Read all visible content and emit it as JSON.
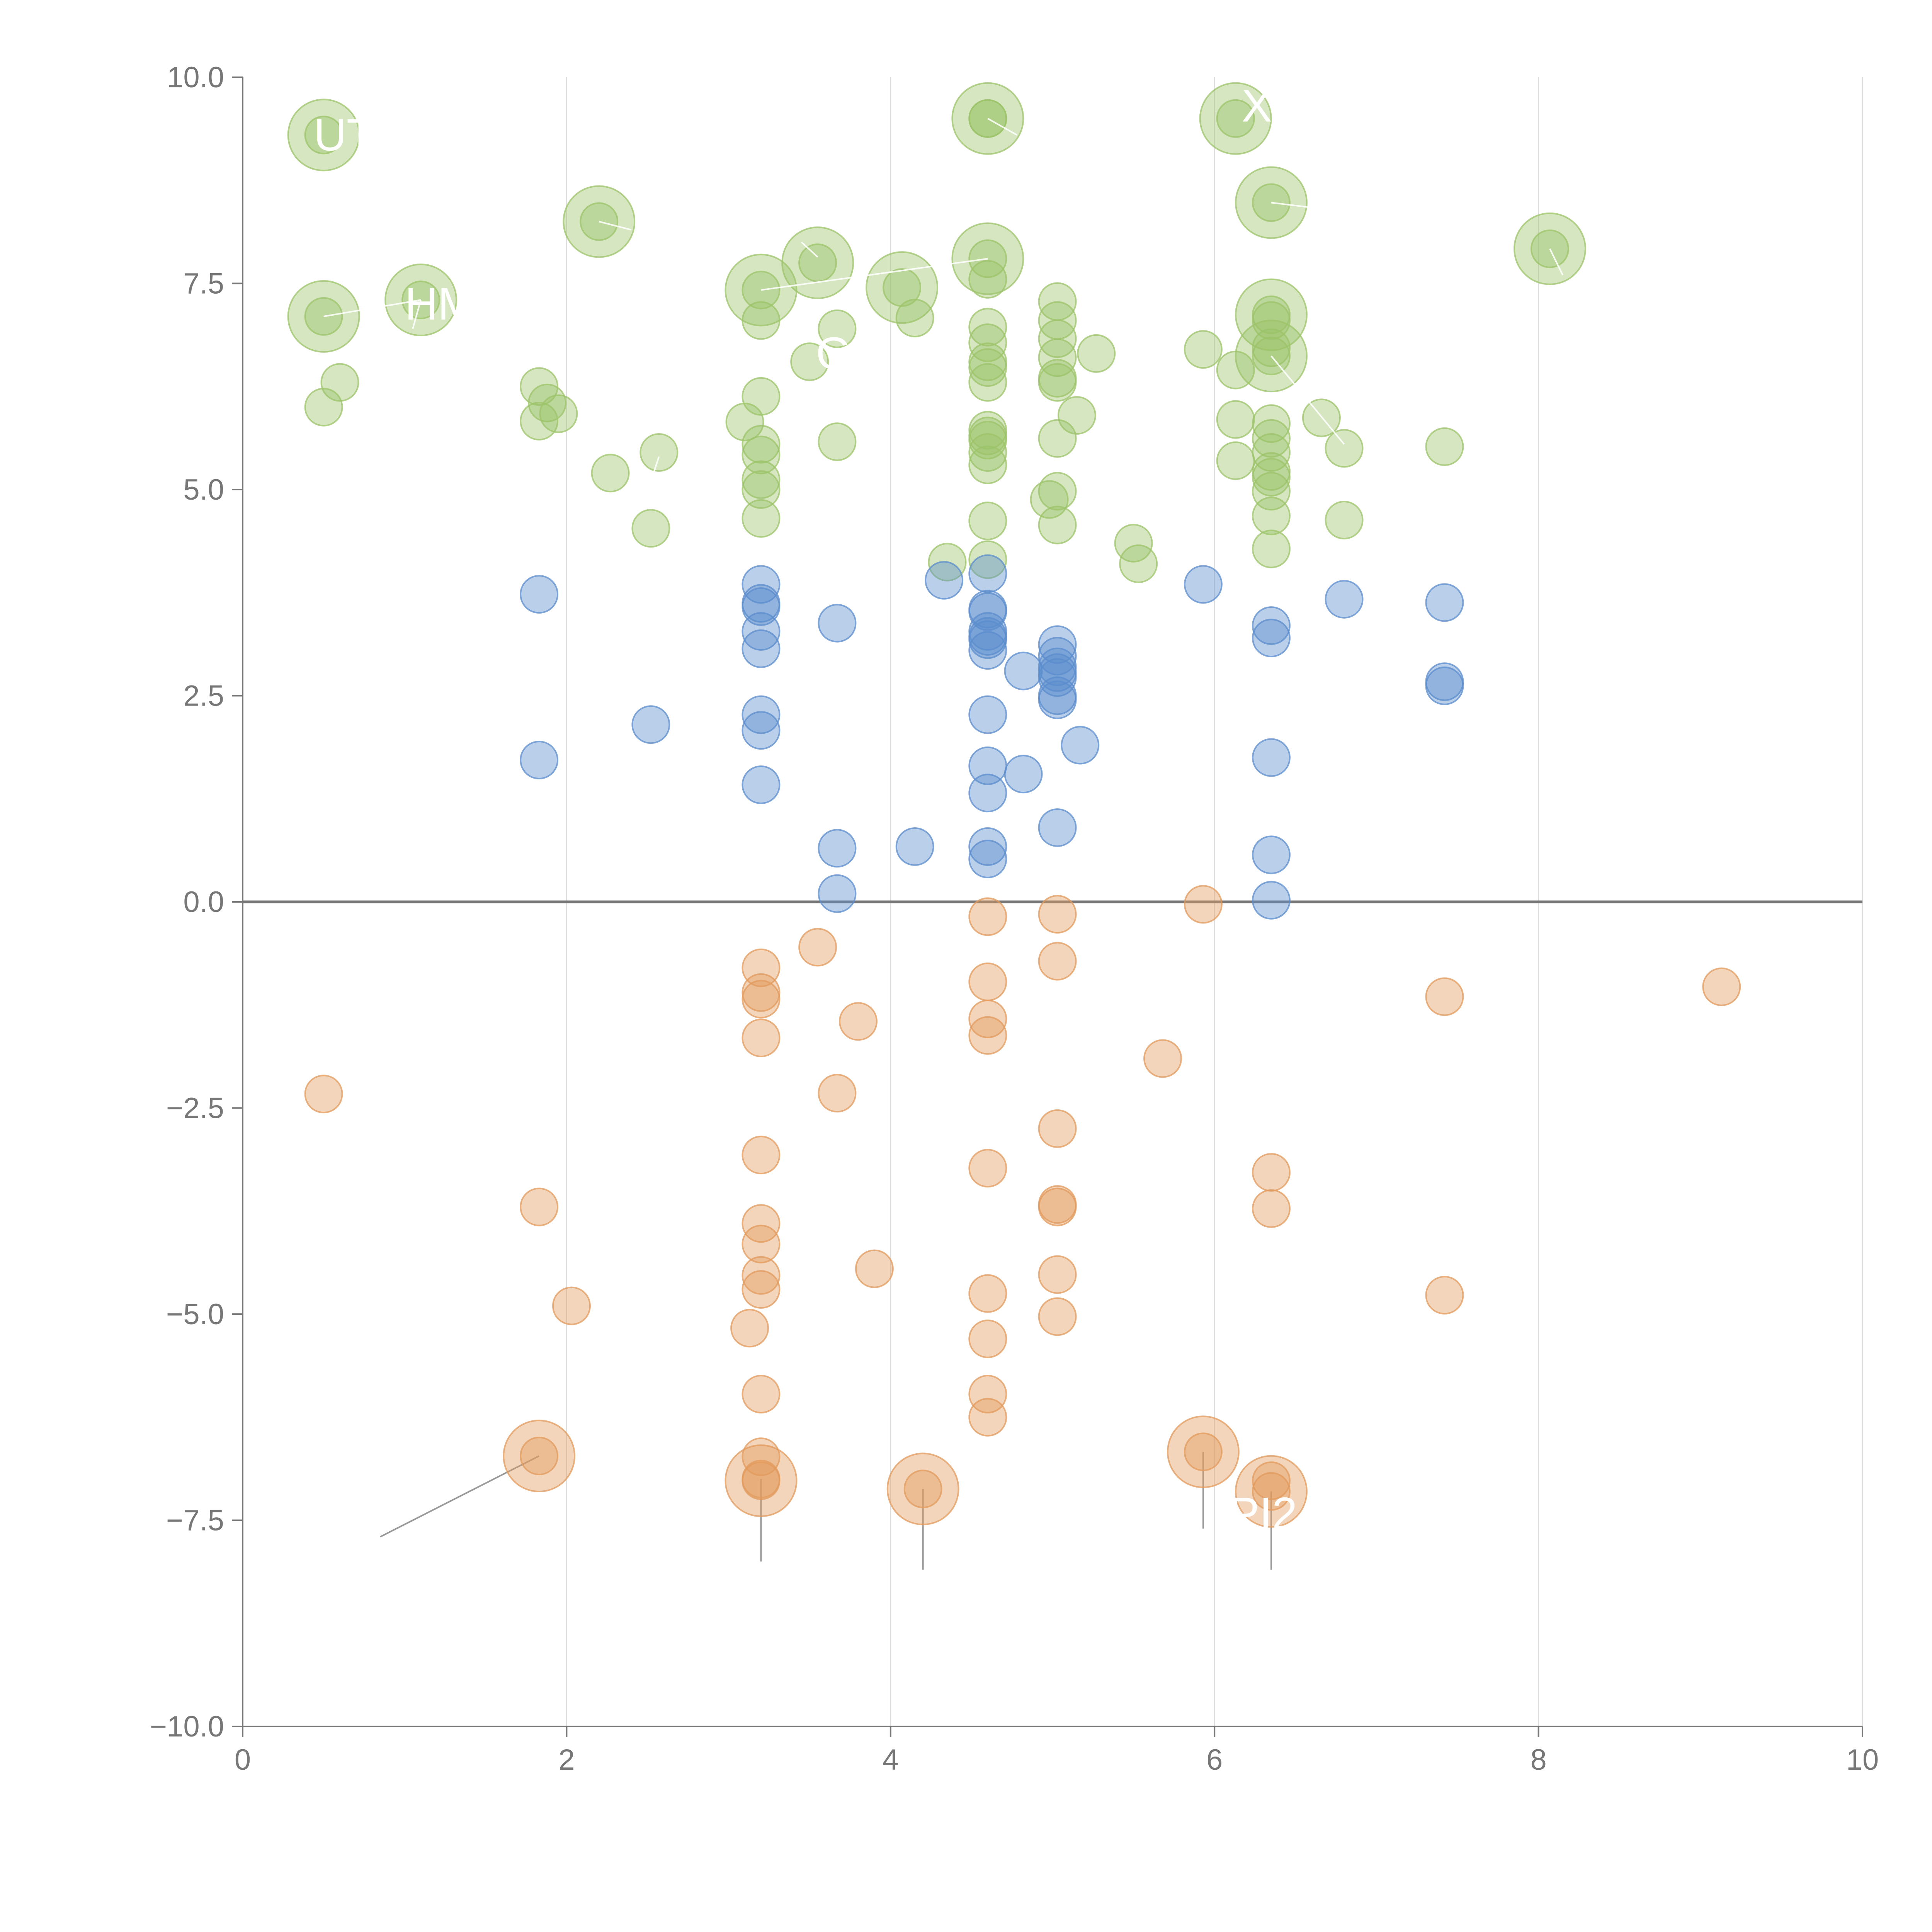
{
  "chart_data": {
    "type": "scatter",
    "title": "",
    "xlabel": "",
    "ylabel": "",
    "xlim": [
      0,
      10
    ],
    "ylim": [
      -10,
      10
    ],
    "x_ticks": [
      "0",
      "2",
      "4",
      "6",
      "8",
      "10"
    ],
    "y_ticks": [
      "−10.0",
      "−7.5",
      "−5.0",
      "−2.5",
      "0.0",
      "2.5",
      "5.0",
      "7.5",
      "10.0"
    ],
    "x_tick_values": [
      0,
      2,
      4,
      6,
      8,
      10
    ],
    "y_tick_values": [
      -10,
      -7.5,
      -5,
      -2.5,
      0,
      2.5,
      5,
      7.5,
      10
    ],
    "grid": "vertical",
    "zero_line": true,
    "colors": {
      "green": "#9cc36a",
      "blue": "#5b8ccc",
      "orange": "#e29a5c",
      "axis": "#777777",
      "grid": "#dddddd",
      "zero_line": "#777777"
    },
    "series": [
      {
        "color_key": "green",
        "points": [
          [
            0.5,
            9.3
          ],
          [
            0.5,
            7.1
          ],
          [
            0.5,
            6.0
          ],
          [
            0.6,
            6.3
          ],
          [
            1.1,
            7.3
          ],
          [
            1.83,
            6.25
          ],
          [
            1.83,
            5.83
          ],
          [
            1.88,
            6.05
          ],
          [
            1.95,
            5.92
          ],
          [
            2.2,
            8.25
          ],
          [
            2.27,
            5.2
          ],
          [
            2.52,
            4.53
          ],
          [
            2.57,
            5.45
          ],
          [
            3.1,
            5.82
          ],
          [
            3.2,
            7.42
          ],
          [
            3.2,
            7.05
          ],
          [
            3.2,
            6.13
          ],
          [
            3.2,
            5.55
          ],
          [
            3.2,
            5.42
          ],
          [
            3.2,
            5.12
          ],
          [
            3.2,
            5.0
          ],
          [
            3.2,
            4.65
          ],
          [
            3.5,
            6.55
          ],
          [
            3.55,
            7.75
          ],
          [
            3.67,
            6.95
          ],
          [
            3.67,
            5.58
          ],
          [
            4.07,
            7.45
          ],
          [
            4.15,
            7.08
          ],
          [
            4.35,
            4.12
          ],
          [
            4.6,
            9.5
          ],
          [
            4.6,
            9.5
          ],
          [
            4.6,
            7.8
          ],
          [
            4.6,
            7.55
          ],
          [
            4.6,
            6.97
          ],
          [
            4.6,
            6.78
          ],
          [
            4.6,
            6.55
          ],
          [
            4.6,
            6.48
          ],
          [
            4.6,
            6.3
          ],
          [
            4.6,
            5.72
          ],
          [
            4.6,
            5.65
          ],
          [
            4.6,
            5.6
          ],
          [
            4.6,
            5.45
          ],
          [
            4.6,
            5.3
          ],
          [
            4.6,
            4.62
          ],
          [
            4.6,
            4.15
          ],
          [
            4.98,
            4.88
          ],
          [
            5.03,
            7.28
          ],
          [
            5.03,
            7.05
          ],
          [
            5.03,
            6.83
          ],
          [
            5.03,
            6.6
          ],
          [
            5.03,
            6.35
          ],
          [
            5.03,
            6.3
          ],
          [
            5.03,
            5.62
          ],
          [
            5.03,
            4.98
          ],
          [
            5.03,
            4.57
          ],
          [
            5.15,
            5.9
          ],
          [
            5.27,
            6.65
          ],
          [
            5.5,
            4.35
          ],
          [
            5.53,
            4.1
          ],
          [
            5.93,
            6.7
          ],
          [
            6.13,
            9.5
          ],
          [
            6.13,
            6.45
          ],
          [
            6.13,
            5.85
          ],
          [
            6.13,
            5.35
          ],
          [
            6.35,
            8.48
          ],
          [
            6.35,
            7.12
          ],
          [
            6.35,
            7.05
          ],
          [
            6.35,
            6.72
          ],
          [
            6.35,
            6.62
          ],
          [
            6.35,
            5.8
          ],
          [
            6.35,
            5.62
          ],
          [
            6.35,
            5.45
          ],
          [
            6.35,
            5.22
          ],
          [
            6.35,
            5.15
          ],
          [
            6.35,
            4.98
          ],
          [
            6.35,
            4.68
          ],
          [
            6.35,
            4.28
          ],
          [
            6.66,
            5.87
          ],
          [
            6.8,
            5.5
          ],
          [
            6.8,
            4.63
          ],
          [
            7.42,
            5.52
          ],
          [
            8.07,
            7.92
          ]
        ]
      },
      {
        "color_key": "blue",
        "points": [
          [
            1.83,
            3.73
          ],
          [
            1.83,
            1.72
          ],
          [
            2.52,
            2.15
          ],
          [
            3.2,
            3.85
          ],
          [
            3.2,
            3.62
          ],
          [
            3.2,
            3.58
          ],
          [
            3.2,
            3.28
          ],
          [
            3.2,
            3.07
          ],
          [
            3.2,
            2.27
          ],
          [
            3.2,
            2.08
          ],
          [
            3.2,
            1.42
          ],
          [
            3.67,
            3.38
          ],
          [
            3.67,
            0.65
          ],
          [
            3.67,
            0.1
          ],
          [
            4.15,
            0.67
          ],
          [
            4.33,
            3.9
          ],
          [
            4.6,
            3.98
          ],
          [
            4.6,
            3.55
          ],
          [
            4.6,
            3.52
          ],
          [
            4.6,
            3.28
          ],
          [
            4.6,
            3.22
          ],
          [
            4.6,
            3.18
          ],
          [
            4.6,
            3.05
          ],
          [
            4.6,
            2.27
          ],
          [
            4.6,
            1.65
          ],
          [
            4.6,
            1.32
          ],
          [
            4.6,
            0.67
          ],
          [
            4.6,
            0.52
          ],
          [
            4.82,
            2.8
          ],
          [
            4.82,
            1.55
          ],
          [
            5.03,
            3.12
          ],
          [
            5.03,
            2.98
          ],
          [
            5.03,
            2.85
          ],
          [
            5.03,
            2.78
          ],
          [
            5.03,
            2.72
          ],
          [
            5.03,
            2.5
          ],
          [
            5.03,
            2.45
          ],
          [
            5.03,
            0.9
          ],
          [
            5.17,
            1.9
          ],
          [
            5.93,
            3.85
          ],
          [
            6.35,
            3.35
          ],
          [
            6.35,
            3.2
          ],
          [
            6.35,
            1.75
          ],
          [
            6.35,
            0.57
          ],
          [
            6.35,
            0.02
          ],
          [
            6.8,
            3.67
          ],
          [
            7.42,
            3.63
          ],
          [
            7.42,
            2.67
          ],
          [
            7.42,
            2.62
          ]
        ]
      },
      {
        "color_key": "orange",
        "points": [
          [
            0.5,
            -2.33
          ],
          [
            1.83,
            -3.7
          ],
          [
            1.83,
            -6.72
          ],
          [
            2.03,
            -4.9
          ],
          [
            3.13,
            -5.17
          ],
          [
            3.2,
            -0.8
          ],
          [
            3.2,
            -1.1
          ],
          [
            3.2,
            -1.18
          ],
          [
            3.2,
            -1.65
          ],
          [
            3.2,
            -3.07
          ],
          [
            3.2,
            -3.9
          ],
          [
            3.2,
            -4.15
          ],
          [
            3.2,
            -4.53
          ],
          [
            3.2,
            -4.7
          ],
          [
            3.2,
            -5.97
          ],
          [
            3.2,
            -6.73
          ],
          [
            3.2,
            -7.0
          ],
          [
            3.2,
            -7.02
          ],
          [
            3.55,
            -0.55
          ],
          [
            3.67,
            -2.32
          ],
          [
            3.8,
            -1.45
          ],
          [
            3.9,
            -4.45
          ],
          [
            4.2,
            -7.12
          ],
          [
            4.6,
            -0.18
          ],
          [
            4.6,
            -0.97
          ],
          [
            4.6,
            -1.42
          ],
          [
            4.6,
            -1.62
          ],
          [
            4.6,
            -3.23
          ],
          [
            4.6,
            -4.75
          ],
          [
            4.6,
            -5.3
          ],
          [
            4.6,
            -5.97
          ],
          [
            4.6,
            -6.25
          ],
          [
            5.03,
            -0.15
          ],
          [
            5.03,
            -0.72
          ],
          [
            5.03,
            -2.75
          ],
          [
            5.03,
            -3.67
          ],
          [
            5.03,
            -3.7
          ],
          [
            5.03,
            -4.52
          ],
          [
            5.03,
            -5.03
          ],
          [
            5.68,
            -1.9
          ],
          [
            5.93,
            -0.03
          ],
          [
            5.93,
            -6.67
          ],
          [
            6.35,
            -3.28
          ],
          [
            6.35,
            -3.72
          ],
          [
            6.35,
            -7.02
          ],
          [
            6.35,
            -7.15
          ],
          [
            7.42,
            -1.15
          ],
          [
            7.42,
            -4.77
          ],
          [
            9.13,
            -1.03
          ]
        ]
      }
    ],
    "large_points": [
      {
        "series": "green",
        "x": 0.5,
        "y": 9.3
      },
      {
        "series": "green",
        "x": 0.5,
        "y": 7.1
      },
      {
        "series": "green",
        "x": 1.1,
        "y": 7.3
      },
      {
        "series": "green",
        "x": 2.2,
        "y": 8.25
      },
      {
        "series": "green",
        "x": 3.2,
        "y": 7.42
      },
      {
        "series": "green",
        "x": 3.55,
        "y": 7.75
      },
      {
        "series": "green",
        "x": 4.07,
        "y": 7.45
      },
      {
        "series": "green",
        "x": 4.6,
        "y": 9.5
      },
      {
        "series": "green",
        "x": 4.6,
        "y": 7.8
      },
      {
        "series": "green",
        "x": 6.13,
        "y": 9.5
      },
      {
        "series": "green",
        "x": 6.35,
        "y": 8.48
      },
      {
        "series": "green",
        "x": 6.35,
        "y": 7.12
      },
      {
        "series": "green",
        "x": 6.35,
        "y": 6.62
      },
      {
        "series": "green",
        "x": 8.07,
        "y": 7.92
      },
      {
        "series": "orange",
        "x": 1.83,
        "y": -6.72
      },
      {
        "series": "orange",
        "x": 3.2,
        "y": -7.02
      },
      {
        "series": "orange",
        "x": 4.2,
        "y": -7.12
      },
      {
        "series": "orange",
        "x": 5.93,
        "y": -6.67
      },
      {
        "series": "orange",
        "x": 6.35,
        "y": -7.15
      }
    ],
    "annotations": [
      {
        "text": "UTK",
        "x": 0.72,
        "y": 9.3
      },
      {
        "text": "HM",
        "x": 1.22,
        "y": 7.25
      },
      {
        "text": "GN",
        "x": 3.75,
        "y": 6.65
      },
      {
        "text": "XI",
        "x": 6.3,
        "y": 9.65
      },
      {
        "text": "PI2",
        "x": 6.3,
        "y": -7.42
      }
    ]
  }
}
